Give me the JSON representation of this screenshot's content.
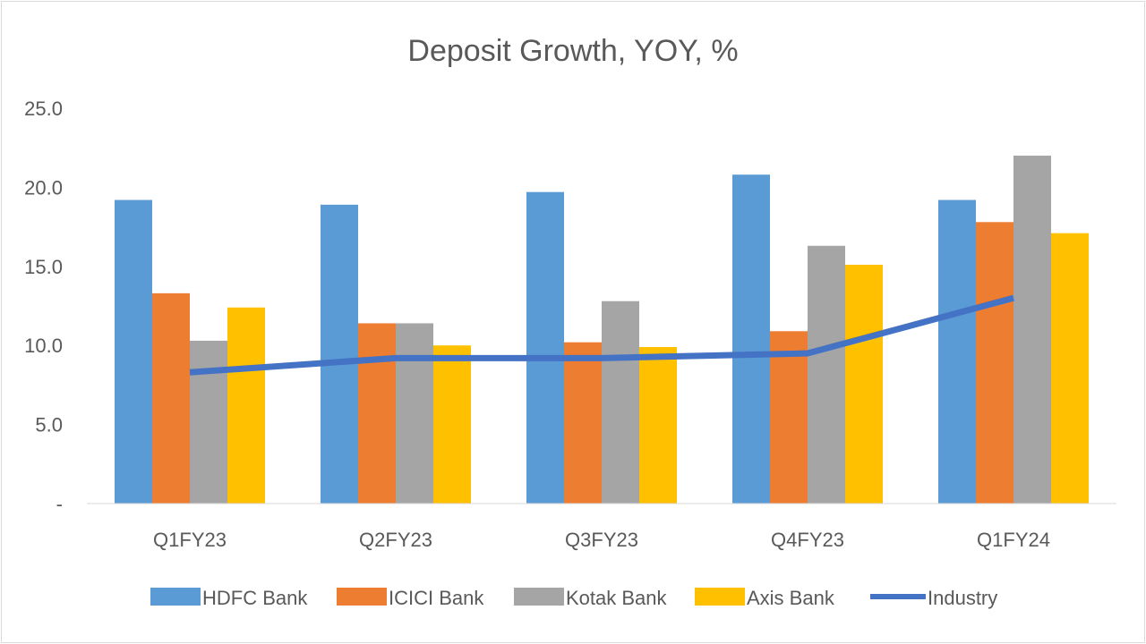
{
  "chart_data": {
    "type": "bar",
    "title": "Deposit Growth, YOY, %",
    "xlabel": "",
    "ylabel": "",
    "ylim": [
      0,
      25
    ],
    "yticks": [
      "-",
      "5.0",
      "10.0",
      "15.0",
      "20.0",
      "25.0"
    ],
    "categories": [
      "Q1FY23",
      "Q2FY23",
      "Q3FY23",
      "Q4FY23",
      "Q1FY24"
    ],
    "series": [
      {
        "name": "HDFC Bank",
        "kind": "bar",
        "color": "#5b9bd5",
        "values": [
          19.2,
          18.9,
          19.7,
          20.8,
          19.2
        ]
      },
      {
        "name": "ICICI Bank",
        "kind": "bar",
        "color": "#ed7d31",
        "values": [
          13.3,
          11.4,
          10.2,
          10.9,
          17.8
        ]
      },
      {
        "name": "Kotak Bank",
        "kind": "bar",
        "color": "#a5a5a5",
        "values": [
          10.3,
          11.4,
          12.8,
          16.3,
          22.0
        ]
      },
      {
        "name": "Axis Bank",
        "kind": "bar",
        "color": "#ffc000",
        "values": [
          12.4,
          10.0,
          9.9,
          15.1,
          17.1
        ]
      },
      {
        "name": "Industry",
        "kind": "line",
        "color": "#4472c4",
        "values": [
          8.3,
          9.2,
          9.2,
          9.5,
          13.0
        ]
      }
    ],
    "grid": false,
    "legend": "bottom"
  }
}
